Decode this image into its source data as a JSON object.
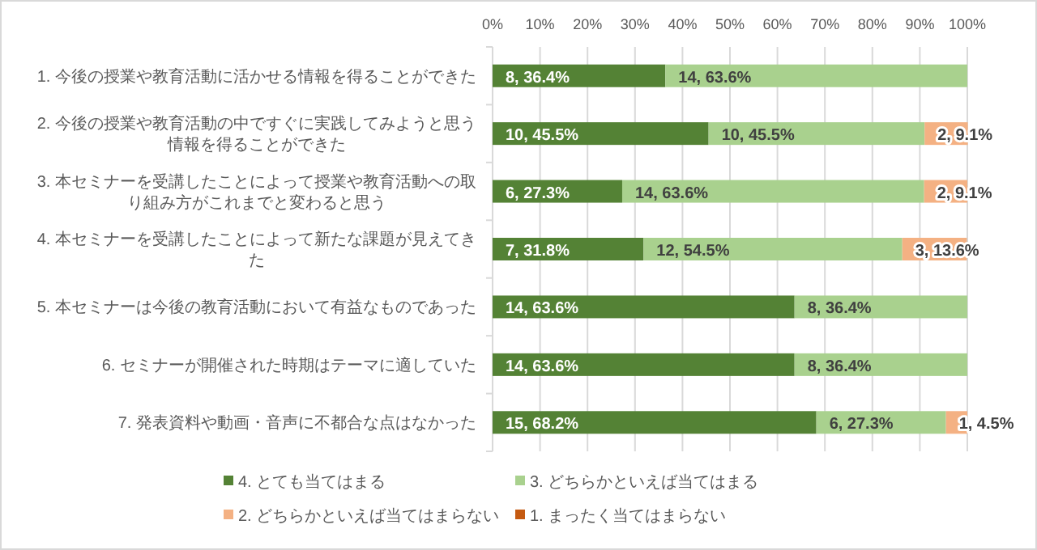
{
  "chart_data": {
    "type": "bar",
    "orientation": "horizontal",
    "stacked": true,
    "categories": [
      "1. 今後の授業や教育活動に活かせる情報を得ることができた",
      "2. 今後の授業や教育活動の中ですぐに実践してみようと思う情報を得ることができた",
      "3. 本セミナーを受講したことによって授業や教育活動への取り組み方がこれまでと変わると思う",
      "4. 本セミナーを受講したことによって新たな課題が見えてきた",
      "5. 本セミナーは今後の教育活動において有益なものであった",
      "6. セミナーが開催された時期はテーマに適していた",
      "7. 発表資料や動画・音声に不都合な点はなかった"
    ],
    "series": [
      {
        "name": "4. とても当てはまる",
        "color": "#548235",
        "values": [
          36.4,
          45.5,
          27.3,
          31.8,
          63.6,
          63.6,
          68.2
        ],
        "value_labels": [
          "8, 36.4%",
          "10, 45.5%",
          "6, 27.3%",
          "7, 31.8%",
          "14, 63.6%",
          "14, 63.6%",
          "15, 68.2%"
        ]
      },
      {
        "name": "3. どちらかといえば当てはまる",
        "color": "#a9d18e",
        "values": [
          63.6,
          45.5,
          63.6,
          54.5,
          36.4,
          36.4,
          27.3
        ],
        "value_labels": [
          "14, 63.6%",
          "10, 45.5%",
          "14, 63.6%",
          "12, 54.5%",
          "8, 36.4%",
          "8, 36.4%",
          "6, 27.3%"
        ]
      },
      {
        "name": "2. どちらかといえば当てはまらない",
        "color": "#f4b183",
        "values": [
          null,
          9.1,
          9.1,
          13.6,
          null,
          null,
          4.5
        ],
        "value_labels": [
          null,
          "2, 9.1%",
          "2, 9.1%",
          "3, 13.6%",
          null,
          null,
          "1, 4.5%"
        ]
      },
      {
        "name": "1. まったく当てはまらない",
        "color": "#c55a11",
        "values": [
          null,
          null,
          null,
          null,
          null,
          null,
          null
        ],
        "value_labels": [
          null,
          null,
          null,
          null,
          null,
          null,
          null
        ]
      }
    ],
    "xlim": [
      0,
      100
    ],
    "xticks": [
      {
        "value": 0,
        "label": "0%"
      },
      {
        "value": 10,
        "label": "10%"
      },
      {
        "value": 20,
        "label": "20%"
      },
      {
        "value": 30,
        "label": "30%"
      },
      {
        "value": 40,
        "label": "40%"
      },
      {
        "value": 50,
        "label": "50%"
      },
      {
        "value": 60,
        "label": "60%"
      },
      {
        "value": 70,
        "label": "70%"
      },
      {
        "value": 80,
        "label": "80%"
      },
      {
        "value": 90,
        "label": "90%"
      },
      {
        "value": 100,
        "label": "100%"
      }
    ],
    "grid": "x",
    "legend": "bottom"
  }
}
